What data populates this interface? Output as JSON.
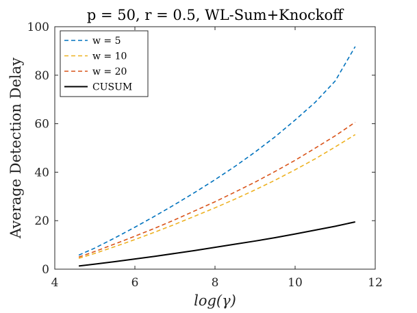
{
  "chart_data": {
    "type": "line",
    "title": "p = 50, r = 0.5, WL-Sum+Knockoff",
    "xlabel": "log(γ)",
    "ylabel": "Average Detection Delay",
    "xlim": [
      4,
      12
    ],
    "ylim": [
      0,
      100
    ],
    "xticks": [
      4,
      6,
      8,
      10,
      12
    ],
    "yticks": [
      0,
      20,
      40,
      60,
      80,
      100
    ],
    "grid": false,
    "legend_position": "top-left",
    "x": [
      4.6,
      5.0,
      5.5,
      6.0,
      6.5,
      7.0,
      7.5,
      8.0,
      8.5,
      9.0,
      9.5,
      10.0,
      10.5,
      11.0,
      11.5
    ],
    "series": [
      {
        "name": "w = 5",
        "color": "#0072BD",
        "dash": "dashed",
        "values": [
          5.8,
          8.7,
          12.9,
          17.3,
          21.9,
          26.7,
          31.7,
          36.9,
          42.4,
          48.3,
          54.6,
          61.5,
          68.8,
          77.6,
          91.8
        ]
      },
      {
        "name": "w = 10",
        "color": "#EDB120",
        "dash": "dashed",
        "values": [
          4.5,
          6.5,
          9.3,
          12.2,
          15.3,
          18.5,
          21.9,
          25.3,
          28.9,
          32.7,
          36.7,
          41.0,
          45.5,
          50.4,
          55.5
        ]
      },
      {
        "name": "w = 20",
        "color": "#D95319",
        "dash": "dashed",
        "values": [
          5.0,
          7.3,
          10.4,
          13.6,
          16.9,
          20.4,
          24.1,
          27.8,
          31.8,
          35.9,
          40.3,
          44.9,
          49.9,
          55.0,
          60.6
        ]
      },
      {
        "name": "CUSUM",
        "color": "#000000",
        "dash": "solid",
        "values": [
          1.3,
          2.1,
          3.1,
          4.2,
          5.3,
          6.5,
          7.7,
          9.0,
          10.3,
          11.6,
          13.0,
          14.5,
          16.1,
          17.7,
          19.5
        ]
      }
    ]
  }
}
